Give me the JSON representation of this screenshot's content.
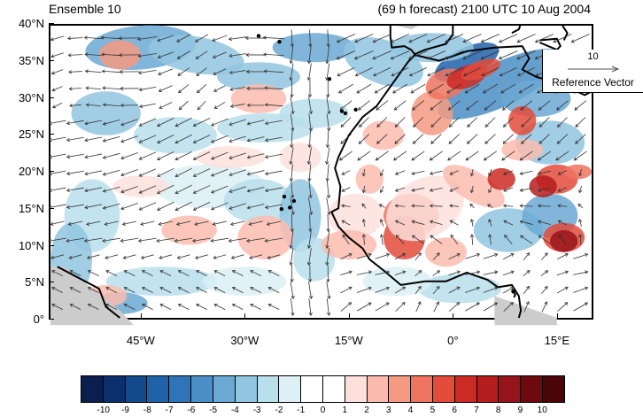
{
  "header": {
    "left_title": "Ensemble 10",
    "right_title": "(69 h forecast) 2100 UTC 10 Aug 2004"
  },
  "map": {
    "lon_range": [
      -58,
      20
    ],
    "lat_range": [
      0,
      40
    ],
    "y_ticks": [
      "0°",
      "5°N",
      "10°N",
      "15°N",
      "20°N",
      "25°N",
      "30°N",
      "35°N",
      "40°N"
    ],
    "x_ticks": [
      {
        "lon": -45,
        "label": "45°W"
      },
      {
        "lon": -30,
        "label": "30°W"
      },
      {
        "lon": -15,
        "label": "15°W"
      },
      {
        "lon": 0,
        "label": "0°"
      },
      {
        "lon": 15,
        "label": "15°E"
      }
    ],
    "coastline_color": "#000000",
    "missing_land_color": "#cccccc"
  },
  "reference_vector": {
    "value": "10",
    "label": "Reference Vector"
  },
  "colorbar": {
    "labels": [
      "-10",
      "-9",
      "-8",
      "-7",
      "-6",
      "-5",
      "-4",
      "-3",
      "-2",
      "-1",
      "0",
      "1",
      "2",
      "3",
      "4",
      "5",
      "6",
      "7",
      "8",
      "9",
      "10"
    ],
    "colors": [
      "#0a1f4e",
      "#0b2f6b",
      "#124a8c",
      "#1f62a8",
      "#2f74b8",
      "#4a8ec6",
      "#6ba9d3",
      "#92c6e0",
      "#b8dfec",
      "#dcf0f6",
      "#ffffff",
      "#ffffff",
      "#fde0dc",
      "#fbbcaf",
      "#f59a83",
      "#ee7460",
      "#e34b3b",
      "#cc2a25",
      "#b51d1f",
      "#96141a",
      "#6e0a0f",
      "#4a0508"
    ]
  }
}
